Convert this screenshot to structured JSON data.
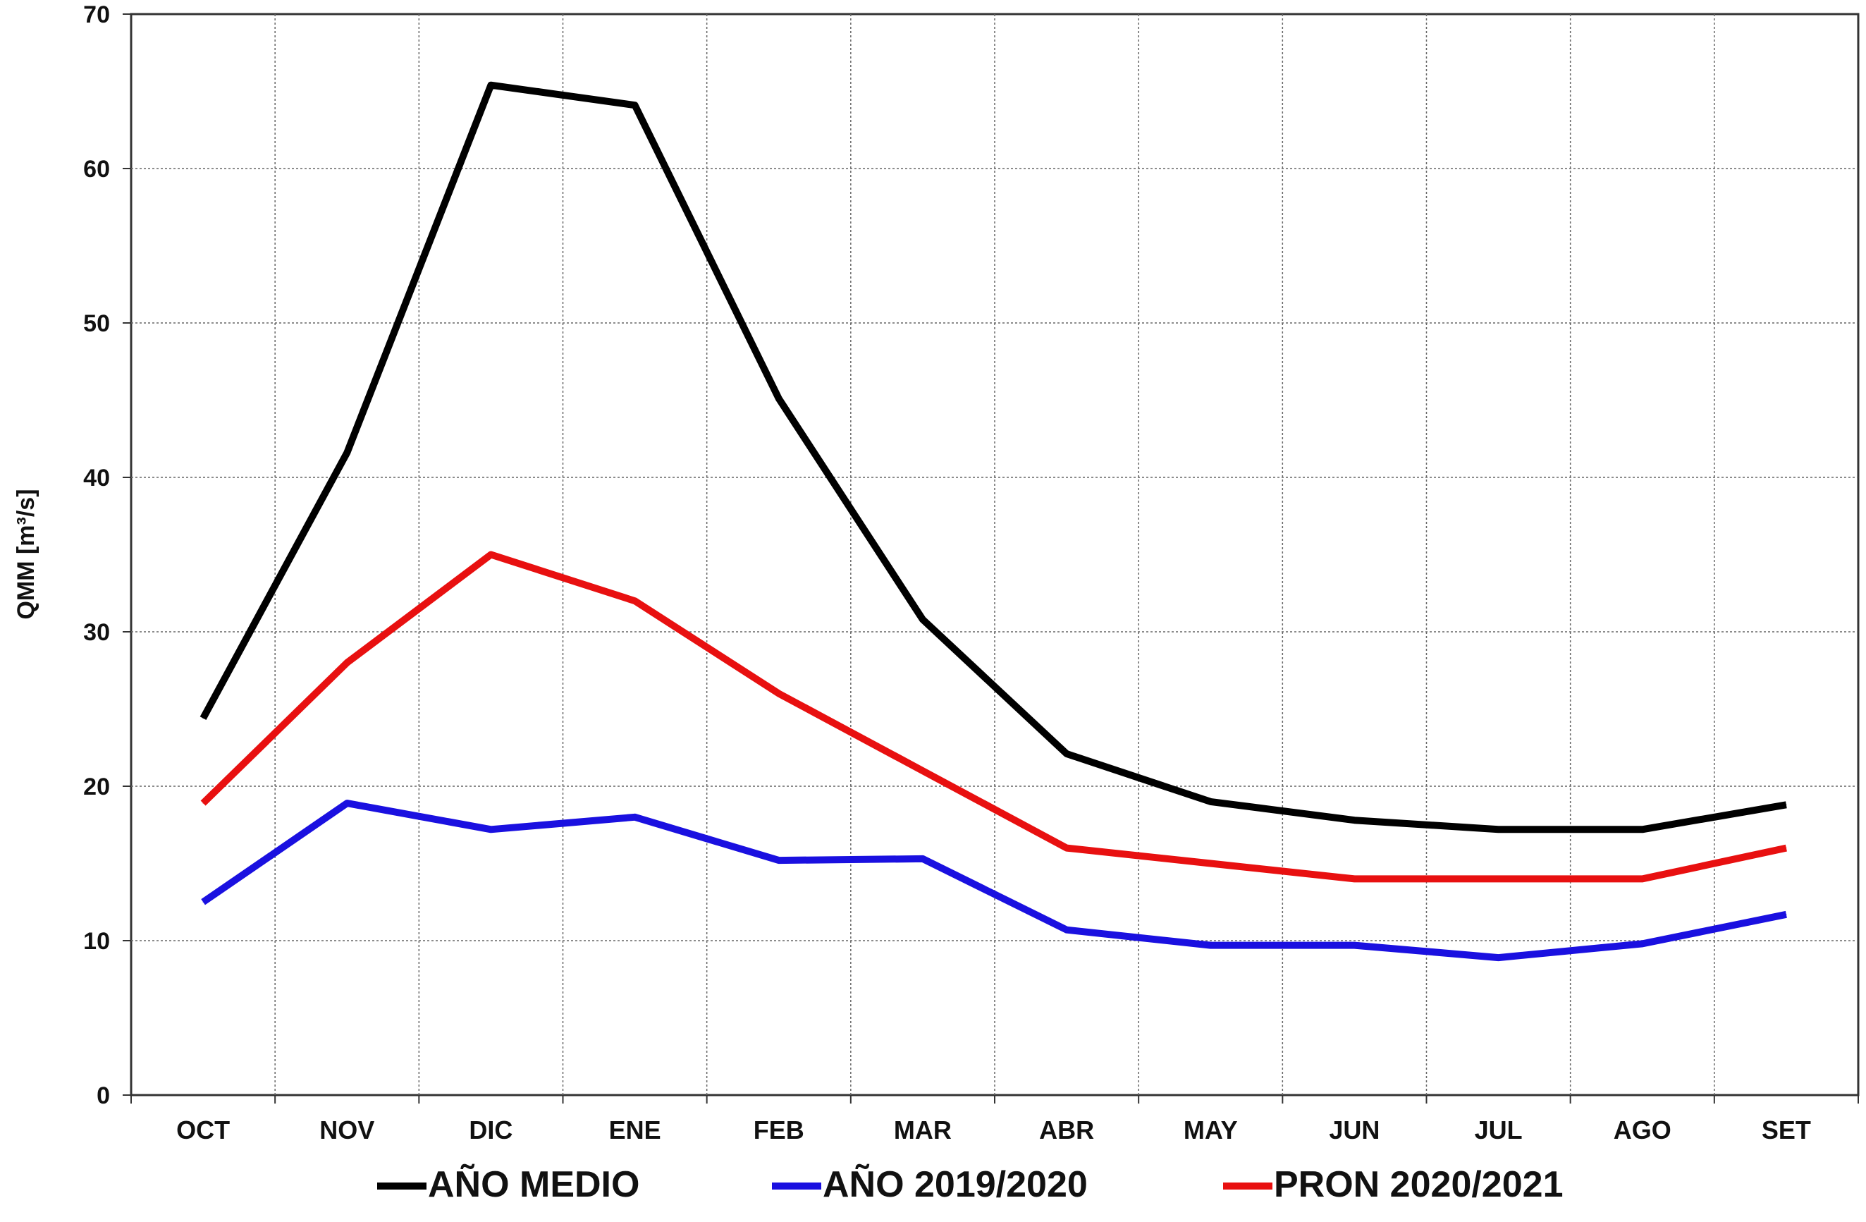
{
  "chart_data": {
    "type": "line",
    "title": "",
    "xlabel": "",
    "ylabel": "QMM [m³/s]",
    "categories": [
      "OCT",
      "NOV",
      "DIC",
      "ENE",
      "FEB",
      "MAR",
      "ABR",
      "MAY",
      "JUN",
      "JUL",
      "AGO",
      "SET"
    ],
    "ylim": [
      0,
      70
    ],
    "yticks": [
      0,
      10,
      20,
      30,
      40,
      50,
      60,
      70
    ],
    "grid": true,
    "legend_position": "bottom",
    "series": [
      {
        "name": "AÑO MEDIO",
        "color": "#000000",
        "values": [
          24.4,
          41.6,
          65.4,
          64.1,
          45.1,
          30.8,
          22.1,
          19.0,
          17.8,
          17.2,
          17.2,
          18.8
        ]
      },
      {
        "name": "AÑO 2019/2020",
        "color": "#1a10e0",
        "values": [
          12.5,
          18.9,
          17.2,
          18.0,
          15.2,
          15.3,
          10.7,
          9.7,
          9.7,
          8.9,
          9.8,
          11.7
        ]
      },
      {
        "name": "PRON 2020/2021",
        "color": "#e81010",
        "values": [
          18.9,
          28.0,
          35.0,
          32.0,
          26.0,
          21.0,
          16.0,
          15.0,
          14.0,
          14.0,
          14.0,
          16.0
        ]
      }
    ]
  }
}
